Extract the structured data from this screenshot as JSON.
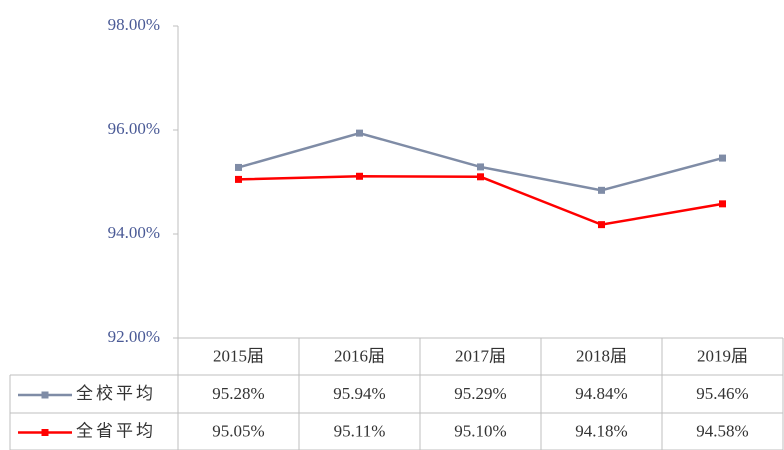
{
  "chart_data": {
    "type": "line",
    "categories": [
      "2015届",
      "2016届",
      "2017届",
      "2018届",
      "2019届"
    ],
    "series": [
      {
        "name": "全校平均",
        "color": "#7f8ca6",
        "values": [
          95.28,
          95.94,
          95.29,
          94.84,
          95.46
        ],
        "value_labels": [
          "95.28%",
          "95.94%",
          "95.29%",
          "94.84%",
          "95.46%"
        ]
      },
      {
        "name": "全省平均",
        "color": "#ff0000",
        "values": [
          95.05,
          95.11,
          95.1,
          94.18,
          94.58
        ],
        "value_labels": [
          "95.05%",
          "95.11%",
          "95.10%",
          "94.18%",
          "94.58%"
        ]
      }
    ],
    "ylim": [
      92,
      98
    ],
    "yticks": [
      {
        "value": 92,
        "label": "92.00%"
      },
      {
        "value": 94,
        "label": "94.00%"
      },
      {
        "value": 96,
        "label": "96.00%"
      },
      {
        "value": 98,
        "label": "98.00%"
      }
    ],
    "grid": false
  }
}
